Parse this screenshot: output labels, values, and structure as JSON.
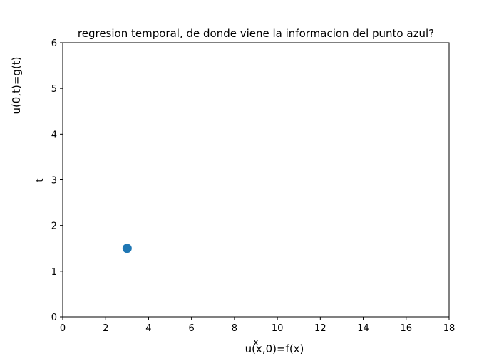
{
  "chart_data": {
    "type": "scatter",
    "title": "regresion temporal, de donde viene la informacion del punto azul?",
    "xlabel": "x",
    "ylabel": "t",
    "xlim": [
      0,
      18
    ],
    "ylim": [
      0,
      6
    ],
    "xticks": [
      0,
      2,
      4,
      6,
      8,
      10,
      12,
      14,
      16,
      18
    ],
    "yticks": [
      0,
      1,
      2,
      3,
      4,
      5,
      6
    ],
    "grid": false,
    "points": [
      {
        "x": 3,
        "y": 1.5,
        "color": "#1f77b4"
      }
    ],
    "annotations": {
      "left": "u(0,t)=g(t)",
      "bottom": "u(x,0)=f(x)"
    }
  }
}
